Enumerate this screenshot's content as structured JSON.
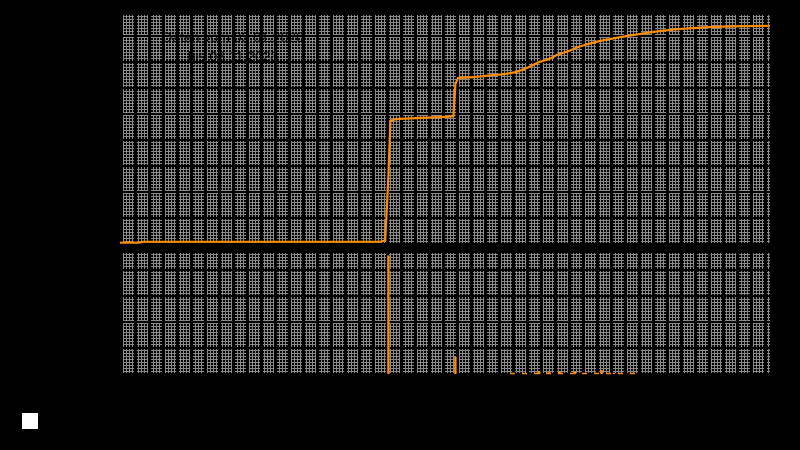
{
  "title": {
    "line1": "Daten vom 03.01.2020",
    "line2": "bis 08.11.2023"
  },
  "colors": {
    "background": "#000000",
    "grid": "#8a8a8a",
    "series": "#ff8c00",
    "title_text": "#000000",
    "marker": "#ffffff"
  },
  "chart_data": [
    {
      "type": "line",
      "name": "cumulative-series",
      "title": "Daten vom 03.01.2020 bis 08.11.2023",
      "xlabel": "",
      "ylabel": "",
      "x_range": [
        "03.01.2020",
        "08.11.2023"
      ],
      "ylim": [
        0,
        1
      ],
      "grid": true,
      "legend_position": "none",
      "note": "normalized coordinates estimated from pixels; no axis tick labels visible",
      "points": [
        [
          0.0,
          0.01
        ],
        [
          0.03,
          0.01
        ],
        [
          0.035,
          0.014
        ],
        [
          0.4,
          0.014
        ],
        [
          0.408,
          0.02
        ],
        [
          0.413,
          0.3
        ],
        [
          0.416,
          0.54
        ],
        [
          0.425,
          0.548
        ],
        [
          0.46,
          0.552
        ],
        [
          0.5,
          0.557
        ],
        [
          0.513,
          0.56
        ],
        [
          0.516,
          0.7
        ],
        [
          0.52,
          0.726
        ],
        [
          0.545,
          0.73
        ],
        [
          0.57,
          0.738
        ],
        [
          0.59,
          0.742
        ],
        [
          0.61,
          0.752
        ],
        [
          0.628,
          0.772
        ],
        [
          0.645,
          0.796
        ],
        [
          0.66,
          0.808
        ],
        [
          0.672,
          0.826
        ],
        [
          0.69,
          0.843
        ],
        [
          0.705,
          0.861
        ],
        [
          0.72,
          0.874
        ],
        [
          0.738,
          0.887
        ],
        [
          0.755,
          0.896
        ],
        [
          0.77,
          0.904
        ],
        [
          0.79,
          0.913
        ],
        [
          0.81,
          0.922
        ],
        [
          0.83,
          0.93
        ],
        [
          0.855,
          0.938
        ],
        [
          0.88,
          0.943
        ],
        [
          0.91,
          0.948
        ],
        [
          0.95,
          0.951
        ],
        [
          1.0,
          0.953
        ]
      ]
    },
    {
      "type": "bar",
      "name": "increment-series",
      "xlabel": "",
      "ylabel": "",
      "x_range": [
        "03.01.2020",
        "08.11.2023"
      ],
      "ylim": [
        0,
        1
      ],
      "grid": true,
      "note": "impulse spikes, normalized height estimated from pixels",
      "impulses": [
        {
          "x": 0.413,
          "h": 0.98
        },
        {
          "x": 0.516,
          "h": 0.15
        },
        {
          "x": 0.645,
          "h": 0.03
        },
        {
          "x": 0.66,
          "h": 0.025
        },
        {
          "x": 0.676,
          "h": 0.03
        },
        {
          "x": 0.7,
          "h": 0.03
        },
        {
          "x": 0.741,
          "h": 0.04
        },
        {
          "x": 0.76,
          "h": 0.02
        }
      ],
      "baseline_segments": [
        {
          "x1": 0.6,
          "x2": 0.8,
          "h": 0.012
        }
      ]
    }
  ],
  "legend": {
    "marker": "white-square"
  }
}
